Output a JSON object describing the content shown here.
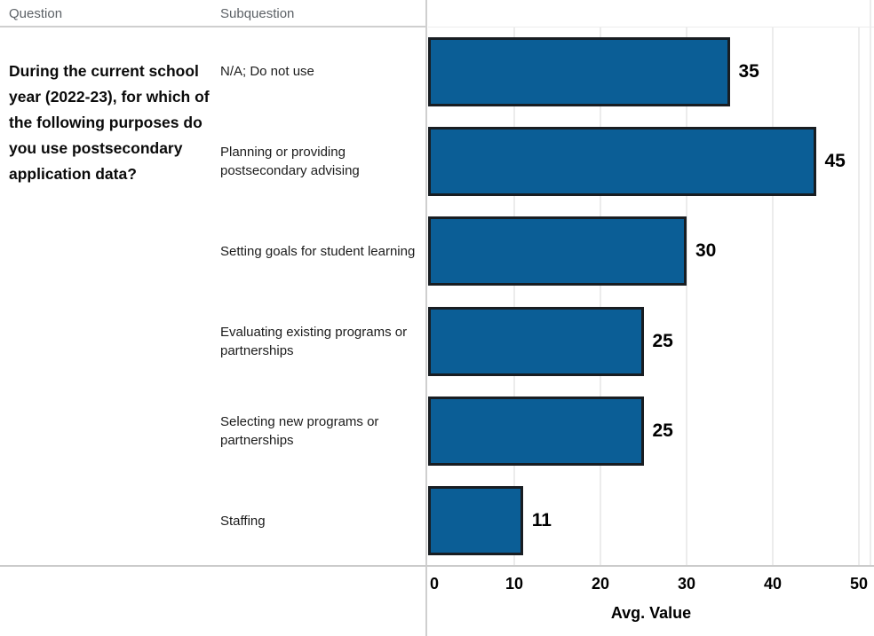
{
  "columns": {
    "question_header": "Question",
    "subquestion_header": "Subquestion"
  },
  "question": {
    "text": "During the current school year (2022-23), for which of the following purposes do you use postsecondary application data?"
  },
  "chart_data": {
    "type": "bar",
    "orientation": "horizontal",
    "categories": [
      "N/A; Do not use",
      "Planning or providing postsecondary advising",
      "Setting goals for student learning",
      "Evaluating existing programs or partnerships",
      "Selecting new programs or partnerships",
      "Staffing"
    ],
    "values": [
      35,
      45,
      30,
      25,
      25,
      11
    ],
    "title": "",
    "xlabel": "Avg. Value",
    "ylabel": "Subquestion",
    "x_ticks": [
      0,
      10,
      20,
      30,
      40,
      50
    ],
    "xlim": [
      0,
      50
    ],
    "grid": true,
    "legend": false,
    "colors": {
      "bar_fill": "#0b5e96",
      "bar_border": "#181d22",
      "gridline": "#ececec",
      "axis_line": "#cbcbcb",
      "tick_text": "#000000",
      "header_text": "#5c6166"
    }
  }
}
